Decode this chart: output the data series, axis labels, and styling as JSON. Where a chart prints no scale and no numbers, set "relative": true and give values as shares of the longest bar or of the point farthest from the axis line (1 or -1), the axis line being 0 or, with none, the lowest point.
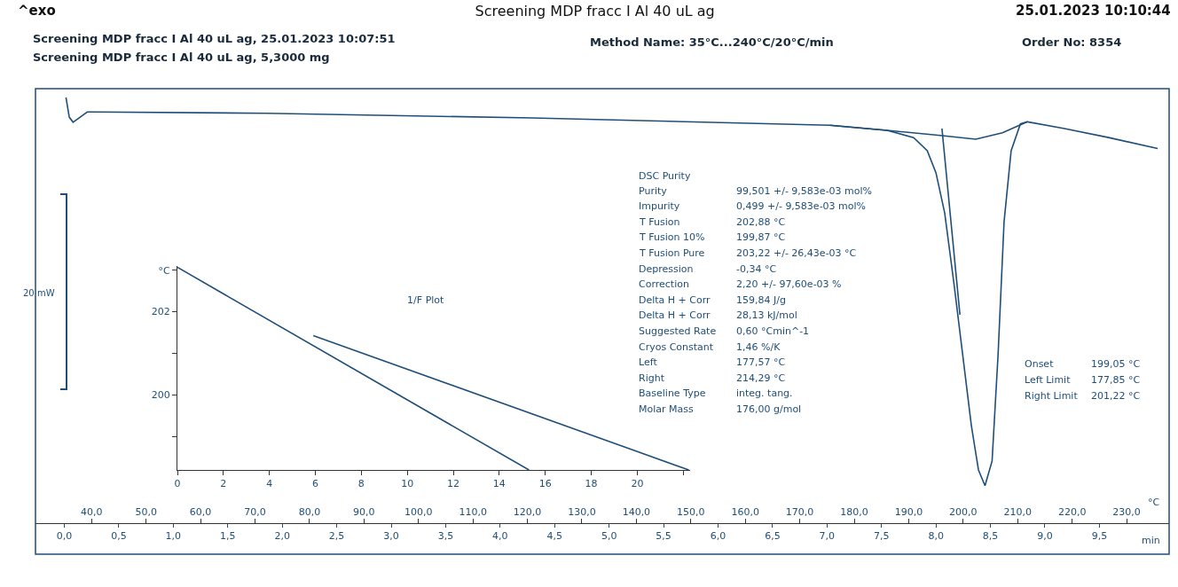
{
  "chart_data": [
    {
      "type": "line",
      "title": "Screening MDP fracc I Al 40 uL ag",
      "relative": true,
      "xlabel": "°C",
      "x2label": "min",
      "xlim": [
        29.7,
        237.8
      ],
      "xticks": [
        {
          "value": 40,
          "label": "40,0"
        },
        {
          "value": 50,
          "label": "50,0"
        },
        {
          "value": 60,
          "label": "60,0"
        },
        {
          "value": 70,
          "label": "70,0"
        },
        {
          "value": 80,
          "label": "80,0"
        },
        {
          "value": 90,
          "label": "90,0"
        },
        {
          "value": 100,
          "label": "100,0"
        },
        {
          "value": 110,
          "label": "110,0"
        },
        {
          "value": 120,
          "label": "120,0"
        },
        {
          "value": 130,
          "label": "130,0"
        },
        {
          "value": 140,
          "label": "140,0"
        },
        {
          "value": 150,
          "label": "150,0"
        },
        {
          "value": 160,
          "label": "160,0"
        },
        {
          "value": 170,
          "label": "170,0"
        },
        {
          "value": 180,
          "label": "180,0"
        },
        {
          "value": 190,
          "label": "190,0"
        },
        {
          "value": 200,
          "label": "200,0"
        },
        {
          "value": 210,
          "label": "210,0"
        },
        {
          "value": 220,
          "label": "220,0"
        },
        {
          "value": 230,
          "label": "230,0"
        }
      ],
      "x2lim": [
        -0.265,
        10.14
      ],
      "x2ticks": [
        {
          "value": 0,
          "label": "0,0"
        },
        {
          "value": 0.5,
          "label": "0,5"
        },
        {
          "value": 1,
          "label": "1,0"
        },
        {
          "value": 1.5,
          "label": "1,5"
        },
        {
          "value": 2,
          "label": "2,0"
        },
        {
          "value": 2.5,
          "label": "2,5"
        },
        {
          "value": 3,
          "label": "3,0"
        },
        {
          "value": 3.5,
          "label": "3,5"
        },
        {
          "value": 4,
          "label": "4,0"
        },
        {
          "value": 4.5,
          "label": "4,5"
        },
        {
          "value": 5,
          "label": "5,0"
        },
        {
          "value": 5.5,
          "label": "5,5"
        },
        {
          "value": 6,
          "label": "6,0"
        },
        {
          "value": 6.5,
          "label": "6,5"
        },
        {
          "value": 7,
          "label": "7,0"
        },
        {
          "value": 7.5,
          "label": "7,5"
        },
        {
          "value": 8,
          "label": "8,0"
        },
        {
          "value": 8.5,
          "label": "8,5"
        },
        {
          "value": 9,
          "label": "9,0"
        },
        {
          "value": 9.5,
          "label": "9,5"
        }
      ],
      "series": [
        {
          "color": "#1f4e79",
          "x": [
            35.3,
            35.9,
            36.6,
            37.9,
            39.2,
            40.3,
            72.1,
            120.9,
            175.5,
            186.0,
            190.9,
            193.4,
            195.0,
            196.6,
            198.3,
            199.9,
            201.5,
            202.8,
            204.0,
            205.3,
            206.4,
            207.5,
            208.8,
            210.5,
            211.8,
            218.6,
            226.7,
            235.7
          ],
          "values": [
            1,
            0.954,
            0.942,
            0.954,
            0.966,
            0.966,
            0.963,
            0.952,
            0.935,
            0.923,
            0.906,
            0.875,
            0.823,
            0.729,
            0.563,
            0.396,
            0.229,
            0.125,
            0.088,
            0.146,
            0.396,
            0.708,
            0.875,
            0.938,
            0.943,
            0.927,
            0.906,
            0.88
          ]
        },
        {
          "color": "#1f4e79",
          "x": [
            175.5,
            186.0,
            195.8,
            202.3,
            207.2,
            211.8
          ],
          "values": [
            0.935,
            0.923,
            0.911,
            0.902,
            0.917,
            0.943
          ]
        },
        {
          "color": "#1f4e79",
          "x": [
            196.1,
            199.4
          ],
          "values": [
            0.927,
            0.49
          ]
        }
      ],
      "grid": false,
      "marker": "none",
      "line_style": "solid",
      "annotations": [
        "^exo",
        "25.01.2023 10:10:44",
        "Screening MDP fracc I Al 40 uL ag, 25.01.2023 10:07:51",
        "Screening MDP fracc I Al 40 uL ag, 5,3000 mg",
        "Method Name: 35°C...240°C/20°C/min",
        "Order No: 8354",
        "20 mW",
        "DSC Purity",
        "Purity",
        "99,501 +/- 9,583e-03 mol%",
        "Impurity",
        "0,499 +/- 9,583e-03 mol%",
        "T Fusion",
        "202,88 °C",
        "T Fusion 10%",
        "199,87 °C",
        "T Fusion Pure",
        "203,22 +/- 26,43e-03 °C",
        "Depression",
        "-0,34 °C",
        "Correction",
        "2,20 +/- 97,60e-03 %",
        "Delta H + Corr",
        "159,84 J/g",
        "Delta H + Corr",
        "28,13 kJ/mol",
        "Suggested Rate",
        "0,60 °Cmin^-1",
        "Cryos Constant",
        "1,46 %/K",
        "Left",
        "177,57 °C",
        "Right",
        "214,29 °C",
        "Baseline Type",
        "integ. tang.",
        "Molar Mass",
        "176,00 g/mol",
        "Onset",
        "199,05 °C",
        "Left Limit",
        "177,85 °C",
        "Right Limit",
        "201,22 °C"
      ]
    },
    {
      "type": "line",
      "title": "1/F Plot",
      "xlim": [
        0,
        22.3
      ],
      "ylim": [
        198.2,
        203.1
      ],
      "xticks": [
        0,
        2,
        4,
        6,
        8,
        10,
        12,
        14,
        16,
        18,
        20,
        {
          "value": 22,
          "label": null
        }
      ],
      "yticks": [
        {
          "value": 199,
          "label": null
        },
        200,
        {
          "value": 201,
          "label": null
        },
        202,
        {
          "value": 203,
          "label": "°C"
        }
      ],
      "series": [
        {
          "color": "#1f4e79",
          "x": [
            0,
            15.29
          ],
          "values": [
            203.07,
            198.2
          ]
        },
        {
          "color": "#1f4e79",
          "x": [
            5.91,
            22.24
          ],
          "values": [
            201.43,
            198.2
          ]
        }
      ],
      "grid": false,
      "marker": "none",
      "line_style": "solid"
    }
  ]
}
